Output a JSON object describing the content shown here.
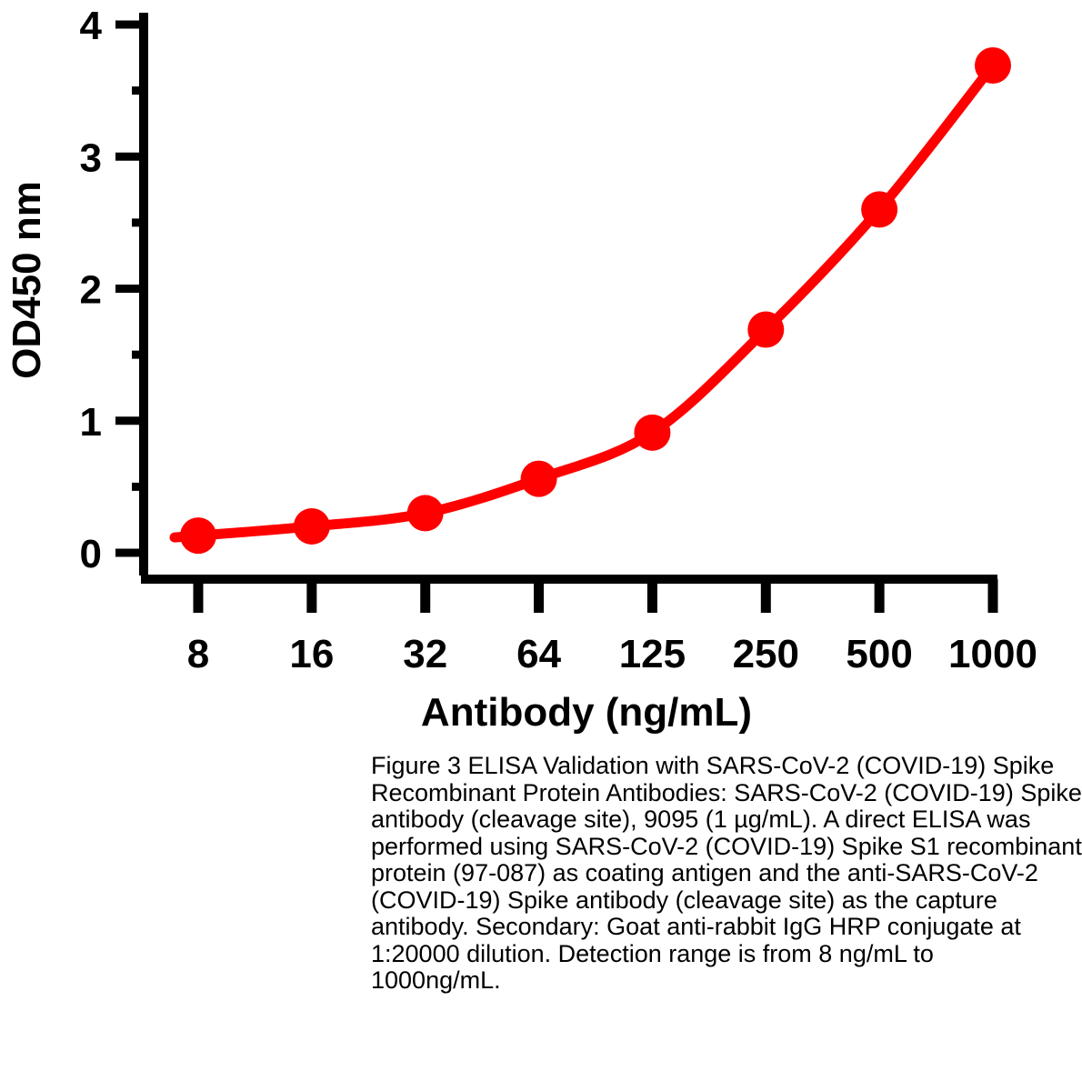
{
  "chart_data": {
    "type": "line",
    "title": "",
    "xlabel": "Antibody (ng/mL)",
    "ylabel": "OD450 nm",
    "categories": [
      "8",
      "16",
      "32",
      "64",
      "125",
      "250",
      "500",
      "1000"
    ],
    "series": [
      {
        "name": "SARS-CoV-2 Spike antibody (cleavage site)",
        "color": "#ff0000",
        "values": [
          0.13,
          0.2,
          0.3,
          0.56,
          0.91,
          1.69,
          2.6,
          3.69
        ]
      }
    ],
    "ylim": [
      0,
      4
    ],
    "yticks": [
      "0",
      "1",
      "2",
      "3",
      "4"
    ],
    "grid": false,
    "legend": "none"
  },
  "caption_lines": [
    "Figure 3 ELISA Validation with SARS-CoV-2 (COVID-19) Spike",
    "Recombinant Protein Antibodies: SARS-CoV-2 (COVID-19) Spike",
    "antibody (cleavage site), 9095 (1 µg/mL). A direct ELISA was",
    "performed using SARS-CoV-2 (COVID-19) Spike S1 recombinant",
    "protein (97-087) as coating antigen and the anti-SARS-CoV-2",
    "(COVID-19) Spike antibody (cleavage site) as the capture",
    "antibody. Secondary: Goat anti-rabbit IgG HRP conjugate at",
    "1:20000 dilution. Detection range is from 8 ng/mL to",
    "1000ng/mL."
  ]
}
